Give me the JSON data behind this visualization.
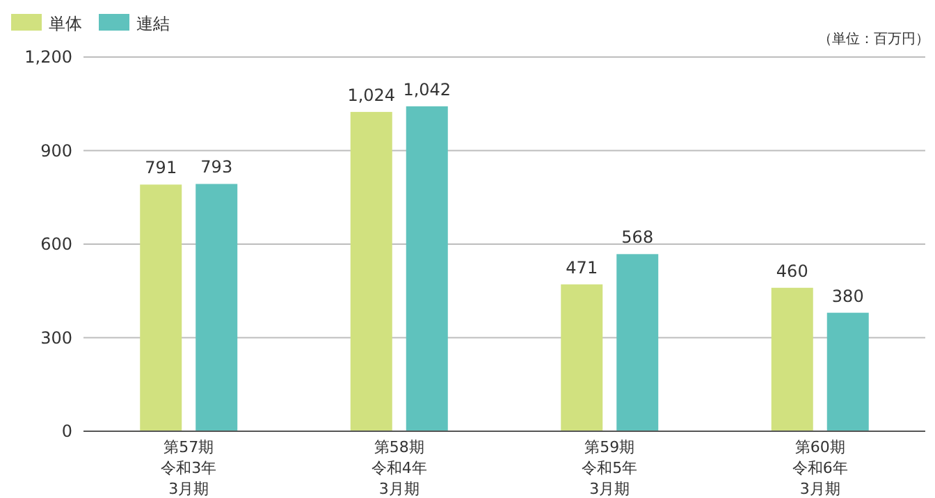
{
  "chart_data": {
    "type": "bar",
    "categories": [
      "第57期令和3年3月期",
      "第58期令和4年3月期",
      "第59期令和5年3月期",
      "第60期令和6年3月期"
    ],
    "series": [
      {
        "name": "単体",
        "color": "#d1e17f",
        "values": [
          791,
          1024,
          471,
          460
        ],
        "value_labels": [
          "791",
          "1,024",
          "471",
          "460"
        ]
      },
      {
        "name": "連結",
        "color": "#5fc2bd",
        "values": [
          793,
          1042,
          568,
          380
        ],
        "value_labels": [
          "793",
          "1,042",
          "568",
          "380"
        ]
      }
    ],
    "ylim": [
      0,
      1200
    ],
    "yticks": [
      0,
      300,
      600,
      900,
      {
        "value": 1200,
        "label": "1,200"
      }
    ],
    "grid": "y",
    "legend": "top left",
    "annotations": [
      "（単位：百万円）"
    ]
  }
}
